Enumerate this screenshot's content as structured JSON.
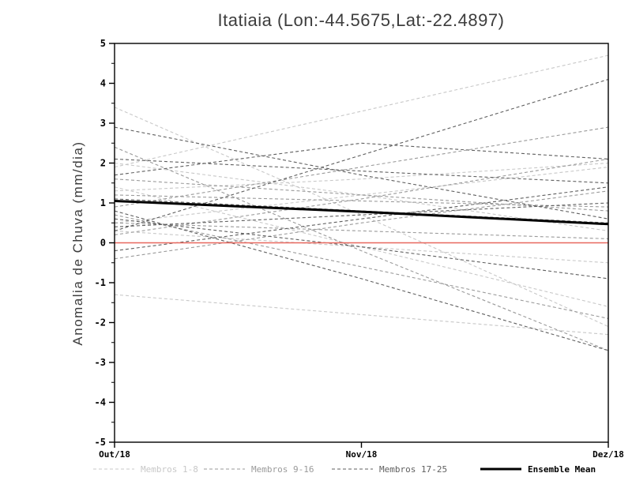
{
  "title": "Itatiaia (Lon:-44.5675,Lat:-22.4897)",
  "ylabel": "Anomalia de Chuva (mm/dia)",
  "chart_data": {
    "type": "line",
    "x": [
      "Out/18",
      "Nov/18",
      "Dez/18"
    ],
    "ylim": [
      -5,
      5
    ],
    "y_ticks": [
      -5,
      -4,
      -3,
      -2,
      -1,
      0,
      1,
      2,
      3,
      4,
      5
    ],
    "grid": false,
    "zero_line": {
      "value": 0,
      "color": "#e8685f"
    },
    "groups": [
      {
        "name": "Membros 1-8",
        "color": "#c8c8c8",
        "style": "dashed",
        "members": [
          [
            3.4,
            0.7,
            -2.1
          ],
          [
            1.9,
            3.3,
            4.7
          ],
          [
            1.4,
            -0.1,
            -1.6
          ],
          [
            -1.3,
            -1.8,
            -2.3
          ],
          [
            0.5,
            1.2,
            1.9
          ],
          [
            2.0,
            1.2,
            0.3
          ],
          [
            0.3,
            -0.1,
            -0.5
          ],
          [
            1.3,
            1.6,
            2.0
          ]
        ]
      },
      {
        "name": "Membros 9-16",
        "color": "#9a9a9a",
        "style": "dashed",
        "members": [
          [
            2.4,
            -0.2,
            -2.7
          ],
          [
            0.9,
            1.9,
            2.9
          ],
          [
            1.6,
            1.2,
            0.8
          ],
          [
            -0.4,
            0.5,
            1.3
          ],
          [
            0.7,
            -0.6,
            -1.9
          ],
          [
            1.2,
            1.05,
            0.9
          ],
          [
            0.2,
            1.1,
            2.1
          ],
          [
            0.5,
            0.3,
            0.1
          ]
        ]
      },
      {
        "name": "Membros 17-25",
        "color": "#5f5f5f",
        "style": "dashed",
        "members": [
          [
            2.9,
            1.7,
            0.6
          ],
          [
            0.3,
            2.2,
            4.1
          ],
          [
            1.7,
            2.5,
            2.1
          ],
          [
            0.8,
            -0.9,
            -2.7
          ],
          [
            -0.2,
            0.6,
            1.4
          ],
          [
            1.1,
            0.8,
            0.5
          ],
          [
            0.4,
            0.7,
            1.0
          ],
          [
            2.1,
            1.8,
            1.5
          ],
          [
            0.6,
            -0.1,
            -0.9
          ]
        ]
      }
    ],
    "ensemble_mean": {
      "name": "Ensemble Mean",
      "color": "#000000",
      "style": "solid",
      "values": [
        1.05,
        0.78,
        0.47
      ]
    }
  },
  "legend": {
    "entries": [
      {
        "label": "Membros 1-8",
        "color": "#c8c8c8",
        "style": "dashed"
      },
      {
        "label": "Membros 9-16",
        "color": "#9a9a9a",
        "style": "dashed"
      },
      {
        "label": "Membros 17-25",
        "color": "#5f5f5f",
        "style": "dashed"
      },
      {
        "label": "Ensemble Mean",
        "color": "#000000",
        "style": "solid"
      }
    ]
  }
}
